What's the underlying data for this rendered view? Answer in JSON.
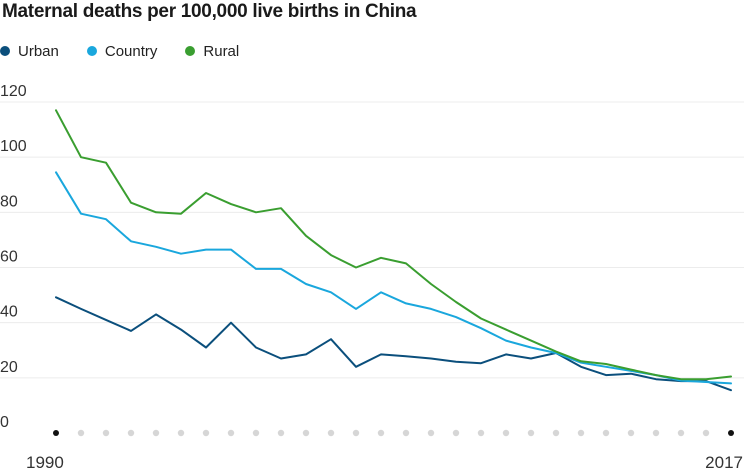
{
  "chart_data": {
    "type": "line",
    "title": "Maternal deaths per 100,000 live births in China",
    "xlabel": "",
    "ylabel": "",
    "ylim": [
      0,
      120
    ],
    "yticks": [
      0,
      20,
      40,
      60,
      80,
      100,
      120
    ],
    "x": [
      1990,
      1991,
      1992,
      1993,
      1994,
      1995,
      1996,
      1997,
      1998,
      1999,
      2000,
      2001,
      2002,
      2003,
      2004,
      2005,
      2006,
      2007,
      2008,
      2009,
      2010,
      2011,
      2012,
      2013,
      2014,
      2015,
      2016,
      2017
    ],
    "xtick_labels": [
      {
        "x": 1990,
        "label": "1990"
      },
      {
        "x": 2017,
        "label": "2017"
      }
    ],
    "grid": true,
    "legend_position": "top-left",
    "series": [
      {
        "name": "Urban",
        "color": "#0b4f7c",
        "values": [
          49.2,
          45.0,
          41.0,
          37.0,
          43.0,
          37.5,
          31.0,
          40.0,
          31.0,
          27.0,
          28.5,
          34.0,
          24.0,
          28.5,
          27.8,
          27.0,
          25.8,
          25.3,
          28.5,
          27.0,
          29.0,
          24.0,
          21.0,
          21.5,
          19.5,
          18.8,
          18.8,
          15.5
        ]
      },
      {
        "name": "Country",
        "color": "#1aa7dd",
        "values": [
          94.5,
          79.5,
          77.5,
          69.5,
          67.5,
          65.0,
          66.5,
          66.5,
          59.5,
          59.5,
          54.0,
          51.0,
          45.0,
          51.0,
          47.0,
          45.0,
          42.0,
          38.0,
          33.5,
          31.0,
          29.0,
          25.5,
          24.0,
          22.5,
          21.0,
          19.0,
          18.5,
          18.0
        ]
      },
      {
        "name": "Rural",
        "color": "#3a9e30",
        "values": [
          117.0,
          100.0,
          98.0,
          83.5,
          80.0,
          79.5,
          87.0,
          83.0,
          80.0,
          81.5,
          71.5,
          64.5,
          60.0,
          63.5,
          61.5,
          54.0,
          47.5,
          41.5,
          37.5,
          33.5,
          29.5,
          26.0,
          25.0,
          23.0,
          21.0,
          19.5,
          19.5,
          20.5
        ]
      }
    ]
  }
}
